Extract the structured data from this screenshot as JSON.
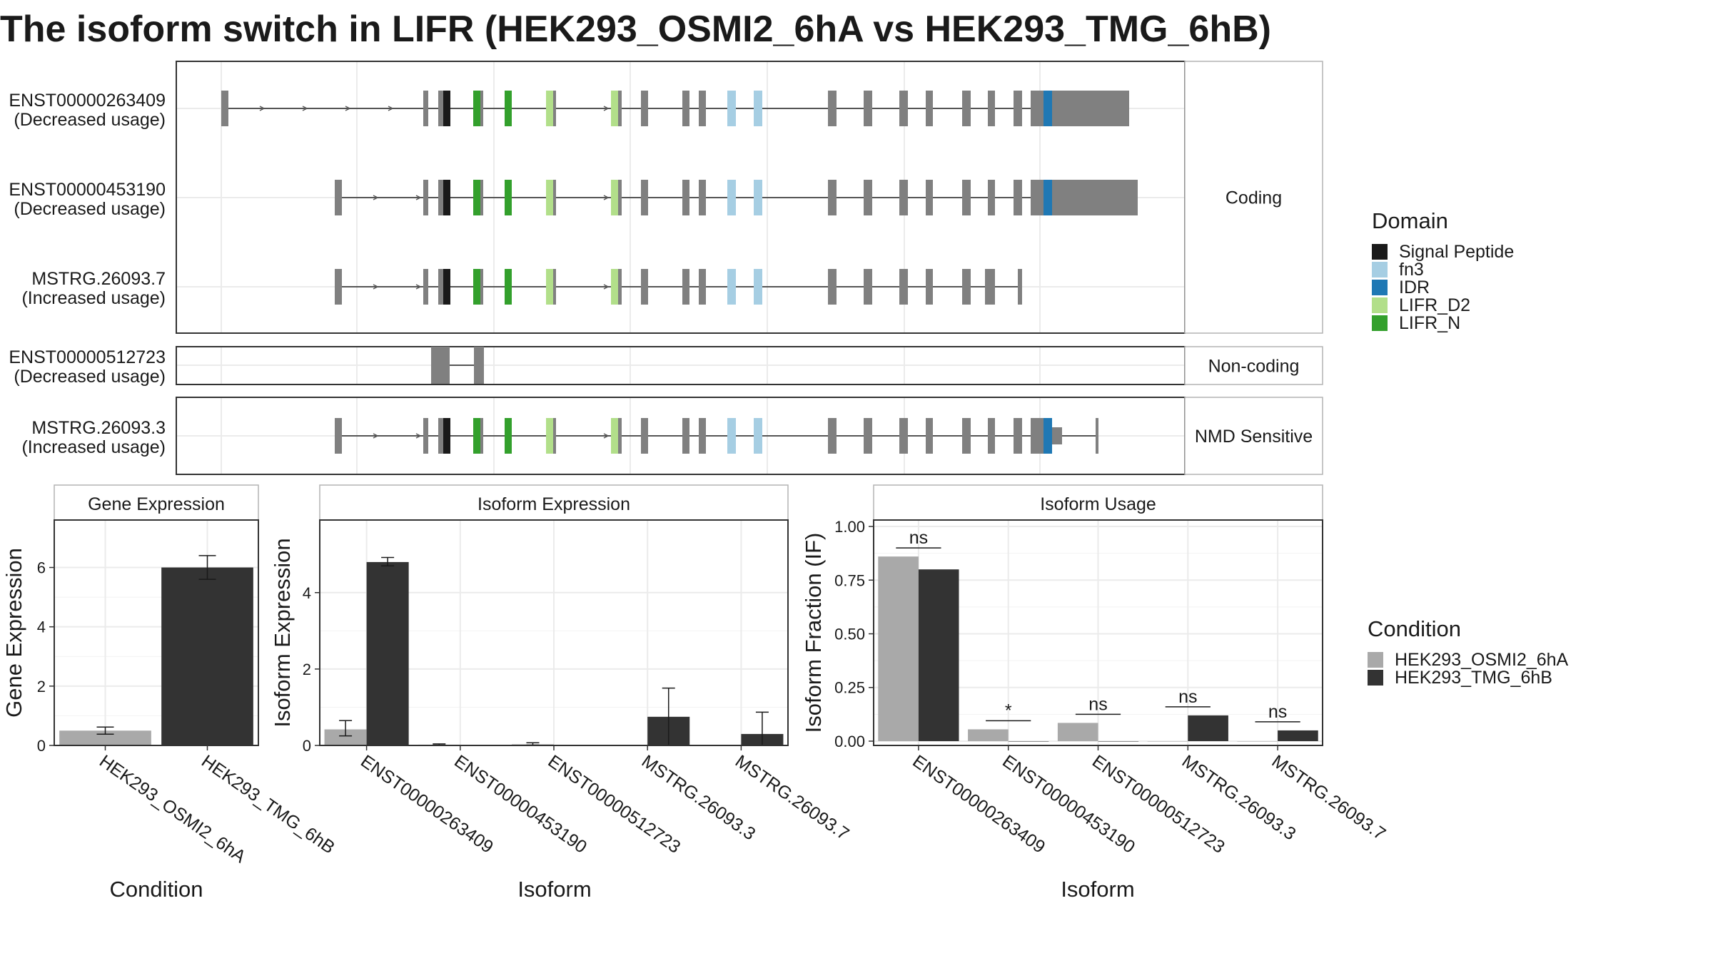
{
  "title": "The isoform switch in LIFR (HEK293_OSMI2_6hA vs HEK293_TMG_6hB)",
  "colors": {
    "exon": "#808080",
    "signal_peptide": "#1a1a1a",
    "fn3": "#a6cee3",
    "idr": "#1f78b4",
    "lifr_d2": "#b2df8a",
    "lifr_n": "#33a02c",
    "cond_a": "#a9a9a9",
    "cond_b": "#333333"
  },
  "structure": {
    "panels": [
      {
        "name": "Coding",
        "isoforms": [
          {
            "id": "ENST00000263409",
            "usage": "(Decreased usage)"
          },
          {
            "id": "ENST00000453190",
            "usage": "(Decreased usage)"
          },
          {
            "id": "MSTRG.26093.7",
            "usage": "(Increased usage)"
          }
        ]
      },
      {
        "name": "Non-coding",
        "isoforms": [
          {
            "id": "ENST00000512723",
            "usage": "(Decreased usage)"
          }
        ]
      },
      {
        "name": "NMD Sensitive",
        "isoforms": [
          {
            "id": "MSTRG.26093.3",
            "usage": "(Increased usage)"
          }
        ]
      }
    ]
  },
  "legend_domain": {
    "title": "Domain",
    "items": [
      {
        "label": "Signal Peptide",
        "color": "#1a1a1a"
      },
      {
        "label": "fn3",
        "color": "#a6cee3"
      },
      {
        "label": "IDR",
        "color": "#1f78b4"
      },
      {
        "label": "LIFR_D2",
        "color": "#b2df8a"
      },
      {
        "label": "LIFR_N",
        "color": "#33a02c"
      }
    ]
  },
  "legend_condition": {
    "title": "Condition",
    "items": [
      {
        "label": "HEK293_OSMI2_6hA",
        "color": "#a9a9a9"
      },
      {
        "label": "HEK293_TMG_6hB",
        "color": "#333333"
      }
    ]
  },
  "chart_data": [
    {
      "type": "bar",
      "title": "Gene Expression",
      "xlabel": "Condition",
      "ylabel": "Gene Expression",
      "ylim": [
        0,
        7.6
      ],
      "yticks": [
        0,
        2,
        4,
        6
      ],
      "categories": [
        "HEK293_OSMI2_6hA",
        "HEK293_TMG_6hB"
      ],
      "values": [
        0.5,
        6.0
      ],
      "errors": [
        [
          0.38,
          0.62
        ],
        [
          5.6,
          6.4
        ]
      ]
    },
    {
      "type": "bar",
      "title": "Isoform Expression",
      "xlabel": "Isoform",
      "ylabel": "Isoform Expression",
      "ylim": [
        0,
        5.9
      ],
      "yticks": [
        0,
        2,
        4
      ],
      "categories": [
        "ENST00000263409",
        "ENST00000453190",
        "ENST00000512723",
        "MSTRG.26093.3",
        "MSTRG.26093.7"
      ],
      "series": [
        {
          "name": "HEK293_OSMI2_6hA",
          "values": [
            0.42,
            0.02,
            0.03,
            0.0,
            0.0
          ],
          "errors": [
            [
              0.25,
              0.65
            ],
            [
              0.01,
              0.04
            ],
            [
              0.01,
              0.07
            ],
            [
              0.0,
              0.0
            ],
            [
              0.0,
              0.0
            ]
          ]
        },
        {
          "name": "HEK293_TMG_6hB",
          "values": [
            4.8,
            0.0,
            0.0,
            0.75,
            0.3
          ],
          "errors": [
            [
              4.7,
              4.92
            ],
            [
              0.0,
              0.0
            ],
            [
              0.0,
              0.0
            ],
            [
              0.0,
              1.5
            ],
            [
              0.0,
              0.87
            ]
          ]
        }
      ]
    },
    {
      "type": "bar",
      "title": "Isoform Usage",
      "xlabel": "Isoform",
      "ylabel": "Isoform Fraction (IF)",
      "ylim": [
        -0.02,
        1.03
      ],
      "yticks": [
        0,
        0.25,
        0.5,
        0.75,
        1.0
      ],
      "ytick_labels": [
        "0.00",
        "0.25",
        "0.50",
        "0.75",
        "1.00"
      ],
      "categories": [
        "ENST00000263409",
        "ENST00000453190",
        "ENST00000512723",
        "MSTRG.26093.3",
        "MSTRG.26093.7"
      ],
      "series": [
        {
          "name": "HEK293_OSMI2_6hA",
          "values": [
            0.86,
            0.055,
            0.085,
            0.0,
            0.0
          ]
        },
        {
          "name": "HEK293_TMG_6hB",
          "values": [
            0.8,
            0.0,
            0.0,
            0.12,
            0.05
          ]
        }
      ],
      "significance": [
        "ns",
        "*",
        "ns",
        "ns",
        "ns"
      ]
    }
  ]
}
